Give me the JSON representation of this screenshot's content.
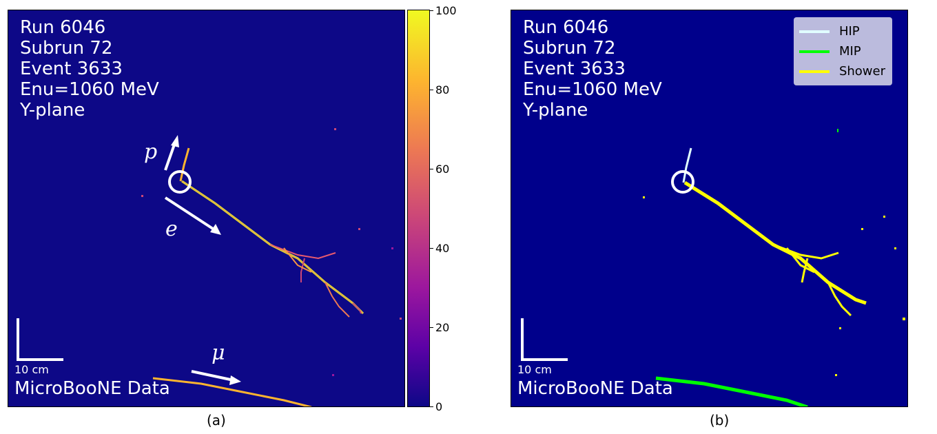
{
  "panels": {
    "a": {
      "info": [
        "Run 6046",
        "Subrun 72",
        "Event 3633",
        "Enu=1060 MeV",
        "Y-plane"
      ],
      "scale_label": "10 cm",
      "watermark": "MicroBooNE Data",
      "particle_labels": {
        "p": "p",
        "e": "e",
        "mu": "μ"
      },
      "caption": "(a)"
    },
    "b": {
      "info": [
        "Run 6046",
        "Subrun 72",
        "Event 3633",
        "Enu=1060 MeV",
        "Y-plane"
      ],
      "scale_label": "10 cm",
      "watermark": "MicroBooNE Data",
      "caption": "(b)"
    }
  },
  "colorbar": {
    "ticks": [
      "0",
      "20",
      "40",
      "60",
      "80",
      "100"
    ]
  },
  "legend": {
    "items": [
      {
        "label": "HIP",
        "color": "#e0ffff"
      },
      {
        "label": "MIP",
        "color": "#00ff00"
      },
      {
        "label": "Shower",
        "color": "#ffff00"
      }
    ]
  },
  "colors": {
    "background_a": "#0d0887",
    "background_b": "#00008b",
    "track_a": "#fdd835",
    "shower_b": "#ffff00",
    "mip_b": "#00ff00",
    "hip_b": "#e0ffff"
  }
}
